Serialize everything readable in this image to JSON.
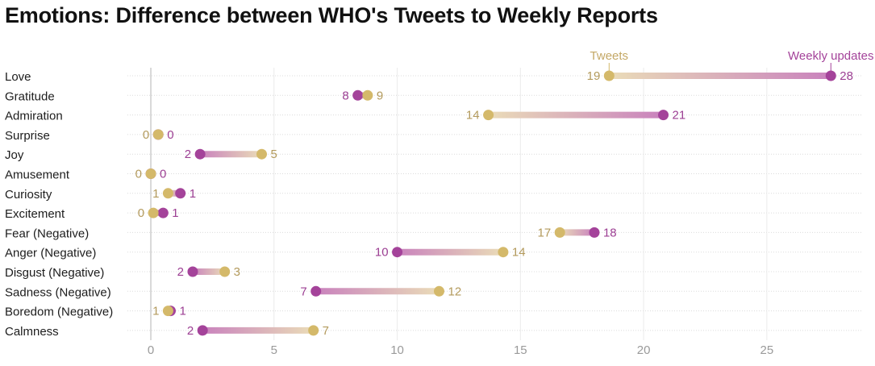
{
  "chart_data": {
    "type": "dumbbell",
    "title": "Emotions: Difference between WHO's Tweets to Weekly Reports",
    "xlabel": "",
    "ylabel": "",
    "xlim": [
      -0.95,
      28.9
    ],
    "xticks": [
      0,
      5,
      10,
      15,
      20,
      25
    ],
    "grid": true,
    "legend_placement": "labels above first row",
    "categories": [
      "Love",
      "Gratitude",
      "Admiration",
      "Surprise",
      "Joy",
      "Amusement",
      "Curiosity",
      "Excitement",
      "Fear (Negative)",
      "Anger (Negative)",
      "Disgust (Negative)",
      "Sadness (Negative)",
      "Boredom (Negative)",
      "Calmness"
    ],
    "series": [
      {
        "name": "Tweets",
        "color": "#d4b96a",
        "values": [
          18.6,
          8.8,
          13.7,
          0.3,
          4.5,
          0.0,
          0.7,
          0.1,
          16.6,
          14.3,
          3.0,
          11.7,
          0.7,
          6.6
        ],
        "labels": [
          "19",
          "9",
          "14",
          "0",
          "5",
          "0",
          "1",
          "0",
          "17",
          "14",
          "3",
          "12",
          "1",
          "7"
        ]
      },
      {
        "name": "Weekly updates",
        "color": "#a4439a",
        "values": [
          27.6,
          8.4,
          20.8,
          0.3,
          2.0,
          0.0,
          1.2,
          0.5,
          18.0,
          10.0,
          1.7,
          6.7,
          0.8,
          2.1
        ],
        "labels": [
          "28",
          "8",
          "21",
          "0",
          "2",
          "0",
          "1",
          "1",
          "18",
          "10",
          "2",
          "7",
          "1",
          "2"
        ]
      }
    ]
  }
}
